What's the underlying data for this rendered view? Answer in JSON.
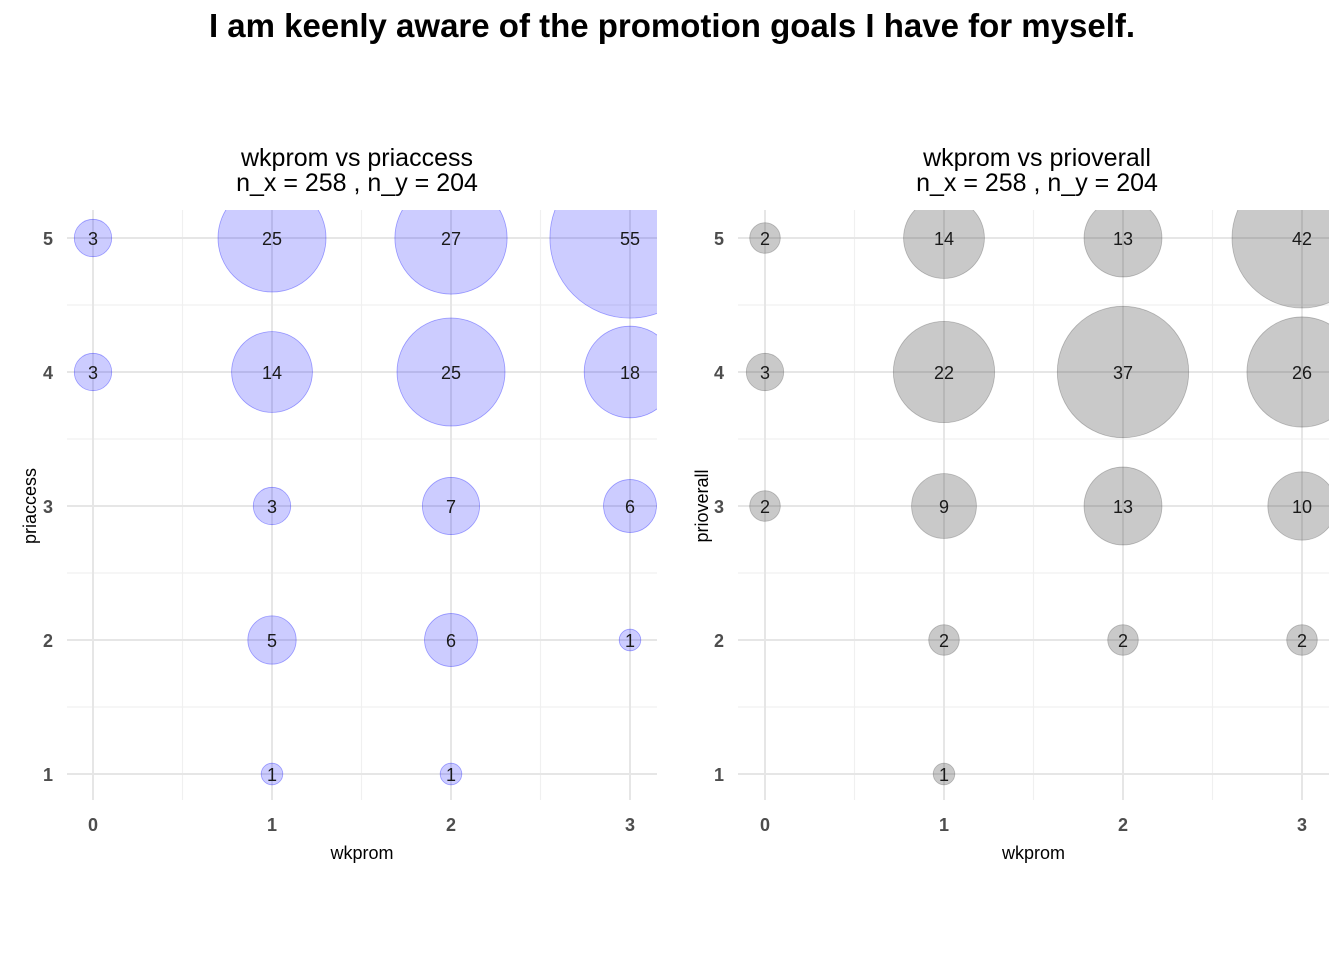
{
  "title": "I am keenly aware of the promotion goals I have for myself.",
  "chart_data": [
    {
      "type": "scatter",
      "title": "wkprom vs priaccess",
      "subtitle": "n_x = 258 , n_y = 204",
      "xlabel": "wkprom",
      "ylabel": "priaccess",
      "x_ticks": [
        "0",
        "1",
        "2",
        "3"
      ],
      "y_ticks": [
        "1",
        "2",
        "3",
        "4",
        "5"
      ],
      "xlim": [
        -0.1,
        3.15
      ],
      "ylim": [
        0.8,
        5.2
      ],
      "grid": true,
      "bubble_color": "#0000ff",
      "bubble_opacity": 0.2,
      "points": [
        {
          "x": 0,
          "y": 5,
          "count": 3
        },
        {
          "x": 1,
          "y": 5,
          "count": 25
        },
        {
          "x": 2,
          "y": 5,
          "count": 27
        },
        {
          "x": 3,
          "y": 5,
          "count": 55
        },
        {
          "x": 0,
          "y": 4,
          "count": 3
        },
        {
          "x": 1,
          "y": 4,
          "count": 14
        },
        {
          "x": 2,
          "y": 4,
          "count": 25
        },
        {
          "x": 3,
          "y": 4,
          "count": 18
        },
        {
          "x": 1,
          "y": 3,
          "count": 3
        },
        {
          "x": 2,
          "y": 3,
          "count": 7
        },
        {
          "x": 3,
          "y": 3,
          "count": 6
        },
        {
          "x": 1,
          "y": 2,
          "count": 5
        },
        {
          "x": 2,
          "y": 2,
          "count": 6
        },
        {
          "x": 3,
          "y": 2,
          "count": 1
        },
        {
          "x": 1,
          "y": 1,
          "count": 1
        },
        {
          "x": 2,
          "y": 1,
          "count": 1
        }
      ]
    },
    {
      "type": "scatter",
      "title": "wkprom vs prioverall",
      "subtitle": "n_x = 258 , n_y = 204",
      "xlabel": "wkprom",
      "ylabel": "prioverall",
      "x_ticks": [
        "0",
        "1",
        "2",
        "3"
      ],
      "y_ticks": [
        "1",
        "2",
        "3",
        "4",
        "5"
      ],
      "xlim": [
        -0.1,
        3.15
      ],
      "ylim": [
        0.8,
        5.2
      ],
      "grid": true,
      "bubble_color": "#4d4d4d",
      "bubble_opacity": 0.3,
      "points": [
        {
          "x": 0,
          "y": 5,
          "count": 2
        },
        {
          "x": 1,
          "y": 5,
          "count": 14
        },
        {
          "x": 2,
          "y": 5,
          "count": 13
        },
        {
          "x": 3,
          "y": 5,
          "count": 42
        },
        {
          "x": 0,
          "y": 4,
          "count": 3
        },
        {
          "x": 1,
          "y": 4,
          "count": 22
        },
        {
          "x": 2,
          "y": 4,
          "count": 37
        },
        {
          "x": 3,
          "y": 4,
          "count": 26
        },
        {
          "x": 0,
          "y": 3,
          "count": 2
        },
        {
          "x": 1,
          "y": 3,
          "count": 9
        },
        {
          "x": 2,
          "y": 3,
          "count": 13
        },
        {
          "x": 3,
          "y": 3,
          "count": 10
        },
        {
          "x": 1,
          "y": 2,
          "count": 2
        },
        {
          "x": 2,
          "y": 2,
          "count": 2
        },
        {
          "x": 3,
          "y": 2,
          "count": 2
        },
        {
          "x": 1,
          "y": 1,
          "count": 1
        }
      ]
    }
  ]
}
